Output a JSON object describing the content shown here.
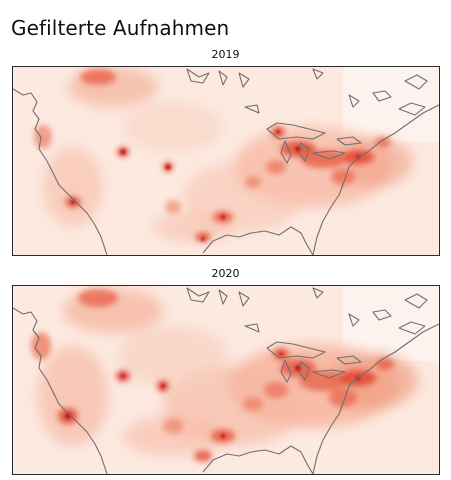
{
  "page": {
    "title": "Gefilterte Aufnahmen"
  },
  "panels": [
    {
      "label": "2019"
    },
    {
      "label": "2020"
    }
  ]
}
